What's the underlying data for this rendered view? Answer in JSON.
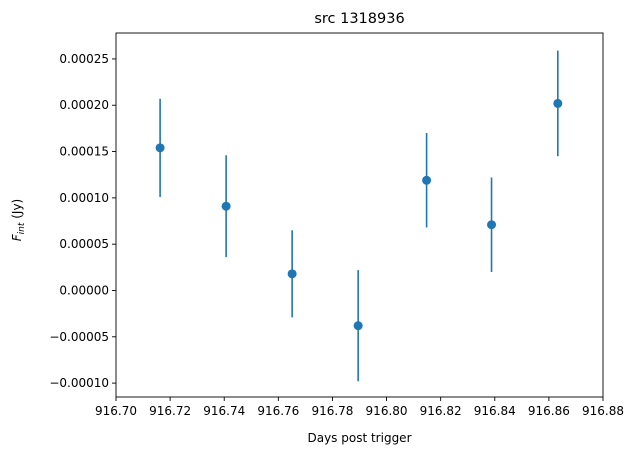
{
  "chart_data": {
    "type": "scatter",
    "title": "src 1318936",
    "xlabel": "Days post trigger",
    "ylabel": {
      "main": "F",
      "sub": "int",
      "unit": " (Jy)"
    },
    "xlim": [
      916.7,
      916.88
    ],
    "ylim": [
      -0.000115,
      0.000278
    ],
    "x_ticks": [
      916.7,
      916.72,
      916.74,
      916.76,
      916.78,
      916.8,
      916.82,
      916.84,
      916.86,
      916.88
    ],
    "x_tick_labels": [
      "916.70",
      "916.72",
      "916.74",
      "916.76",
      "916.78",
      "916.80",
      "916.82",
      "916.84",
      "916.86",
      "916.88"
    ],
    "y_ticks": [
      -0.0001,
      -5e-05,
      0,
      5e-05,
      0.0001,
      0.00015,
      0.0002,
      0.00025
    ],
    "y_tick_labels": [
      "−0.00010",
      "−0.00005",
      "0.00000",
      "0.00005",
      "0.00010",
      "0.00015",
      "0.00020",
      "0.00025"
    ],
    "grid": false,
    "color": "#1f77b4",
    "points": [
      {
        "x": 916.7163,
        "y": 0.000154,
        "err": 5.3e-05
      },
      {
        "x": 916.7407,
        "y": 9.1e-05,
        "err": 5.5e-05
      },
      {
        "x": 916.7651,
        "y": 1.8e-05,
        "err": 4.7e-05
      },
      {
        "x": 916.7895,
        "y": -3.8e-05,
        "err": 6e-05
      },
      {
        "x": 916.8148,
        "y": 0.000119,
        "err": 5.1e-05
      },
      {
        "x": 916.8388,
        "y": 7.1e-05,
        "err": 5.1e-05
      },
      {
        "x": 916.8633,
        "y": 0.000202,
        "err": 5.7e-05
      }
    ]
  }
}
